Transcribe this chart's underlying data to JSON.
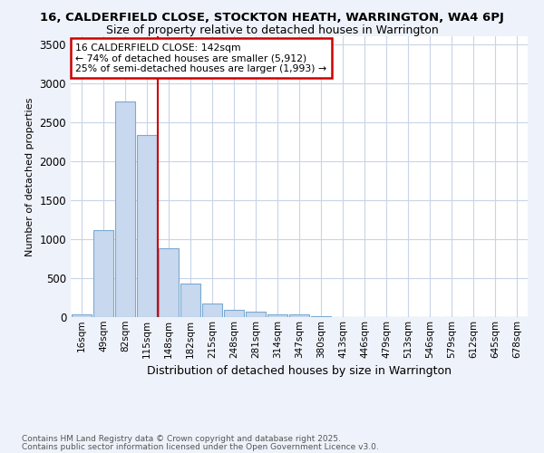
{
  "title1": "16, CALDERFIELD CLOSE, STOCKTON HEATH, WARRINGTON, WA4 6PJ",
  "title2": "Size of property relative to detached houses in Warrington",
  "xlabel": "Distribution of detached houses by size in Warrington",
  "ylabel": "Number of detached properties",
  "categories": [
    "16sqm",
    "49sqm",
    "82sqm",
    "115sqm",
    "148sqm",
    "182sqm",
    "215sqm",
    "248sqm",
    "281sqm",
    "314sqm",
    "347sqm",
    "380sqm",
    "413sqm",
    "446sqm",
    "479sqm",
    "513sqm",
    "546sqm",
    "579sqm",
    "612sqm",
    "645sqm",
    "678sqm"
  ],
  "values": [
    40,
    1120,
    2760,
    2340,
    880,
    430,
    175,
    95,
    65,
    40,
    30,
    8,
    3,
    2,
    1,
    1,
    1,
    0,
    0,
    0,
    0
  ],
  "bar_color": "#c8d8ef",
  "bar_edge_color": "#7aaad0",
  "vline_color": "#cc0000",
  "annotation_text": "16 CALDERFIELD CLOSE: 142sqm\n← 74% of detached houses are smaller (5,912)\n25% of semi-detached houses are larger (1,993) →",
  "annotation_box_color": "#ffffff",
  "annotation_box_edge": "#cc0000",
  "ylim": [
    0,
    3600
  ],
  "yticks": [
    0,
    500,
    1000,
    1500,
    2000,
    2500,
    3000,
    3500
  ],
  "footnote1": "Contains HM Land Registry data © Crown copyright and database right 2025.",
  "footnote2": "Contains public sector information licensed under the Open Government Licence v3.0.",
  "bg_color": "#eef2fa",
  "plot_bg_color": "#ffffff",
  "grid_color": "#c8d4e8"
}
